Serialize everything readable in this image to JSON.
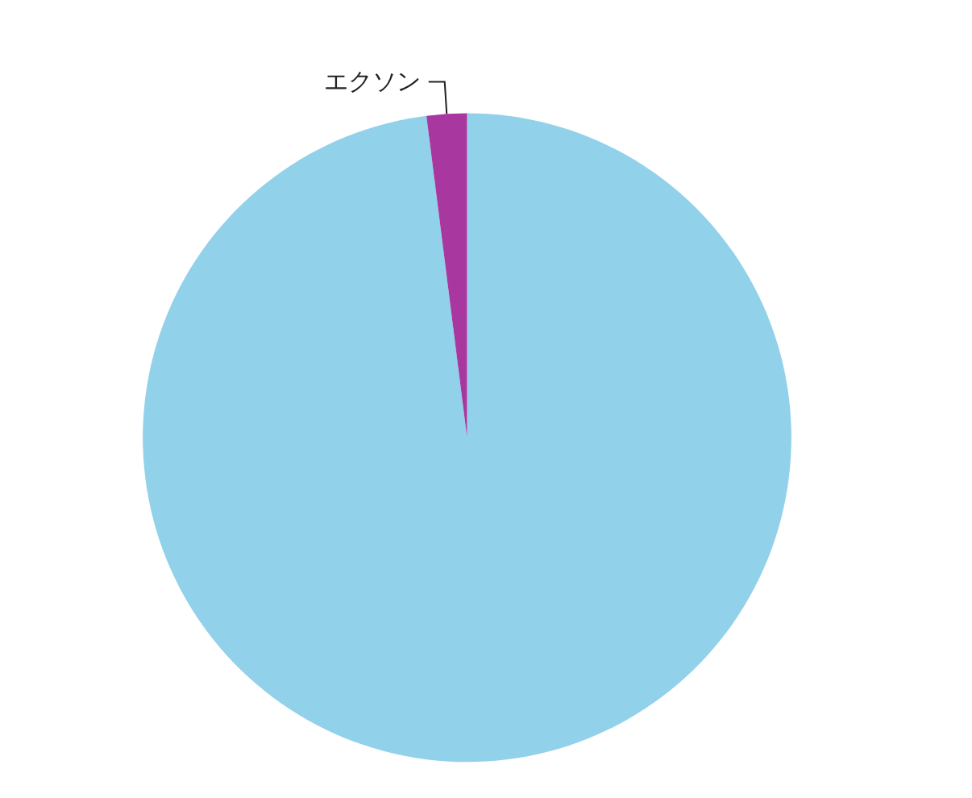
{
  "chart_data": {
    "type": "pie",
    "categories": [
      null,
      "エクソン"
    ],
    "values": [
      98,
      2
    ],
    "colors": [
      "#92d1ea",
      "#a8389f"
    ]
  }
}
